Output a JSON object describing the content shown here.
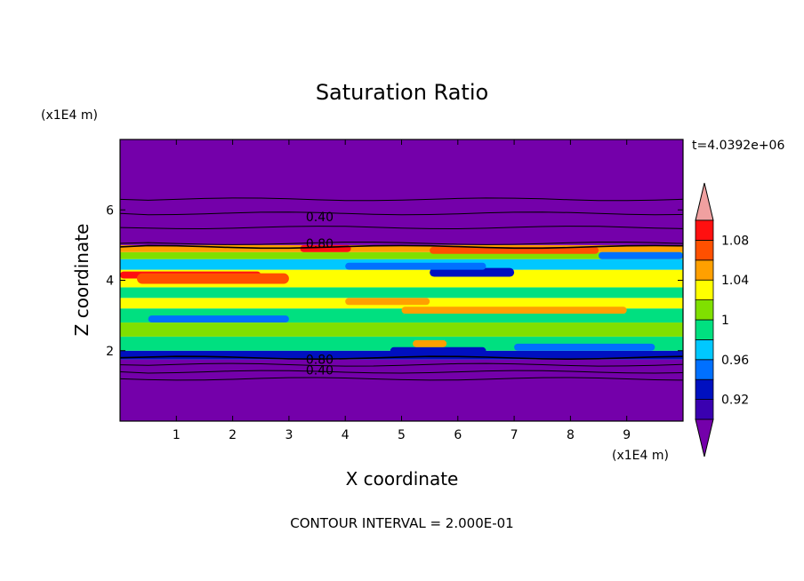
{
  "chart_data": {
    "type": "heatmap",
    "title": "Saturation Ratio",
    "xlabel": "X coordinate",
    "ylabel": "Z coordinate",
    "x_unit": "(x1E4 m)",
    "y_unit": "(x1E4 m)",
    "time_label": "t=4.0392e+06",
    "footer": "CONTOUR INTERVAL = 2.000E-01",
    "xlim": [
      0,
      10
    ],
    "ylim": [
      0,
      8
    ],
    "x_ticks": [
      "1",
      "2",
      "3",
      "4",
      "5",
      "6",
      "7",
      "8",
      "9"
    ],
    "y_ticks": [
      "2",
      "4",
      "6"
    ],
    "grid": false,
    "colorbar": {
      "placement": "right",
      "levels": [
        0.9,
        0.92,
        0.94,
        0.96,
        0.98,
        1.0,
        1.02,
        1.04,
        1.06,
        1.08,
        1.1
      ],
      "tick_labels": [
        "0.92",
        "0.96",
        "1",
        "1.04",
        "1.08"
      ],
      "colors": [
        "#7400aa",
        "#3a00b0",
        "#0010c0",
        "#0070ff",
        "#00c8ff",
        "#00e080",
        "#80e000",
        "#ffff00",
        "#ffa000",
        "#ff5000",
        "#ff1010",
        "#f0a0a0"
      ]
    },
    "contour_labels": [
      "0.40",
      "0.80",
      "0.80",
      "0.40"
    ],
    "bands": [
      {
        "z0": 0.0,
        "z1": 1.75,
        "value": 0.4
      },
      {
        "z0": 1.75,
        "z1": 2.0,
        "value": 0.92
      },
      {
        "z0": 2.0,
        "z1": 2.4,
        "value": 0.985
      },
      {
        "z0": 2.4,
        "z1": 2.8,
        "value": 1.01
      },
      {
        "z0": 2.8,
        "z1": 3.2,
        "value": 0.99
      },
      {
        "z0": 3.2,
        "z1": 3.5,
        "value": 1.03
      },
      {
        "z0": 3.5,
        "z1": 3.8,
        "value": 0.995
      },
      {
        "z0": 3.8,
        "z1": 4.3,
        "value": 1.03
      },
      {
        "z0": 4.3,
        "z1": 4.6,
        "value": 0.97
      },
      {
        "z0": 4.6,
        "z1": 4.8,
        "value": 1.0
      },
      {
        "z0": 4.8,
        "z1": 5.0,
        "value": 1.05
      },
      {
        "z0": 5.0,
        "z1": 8.0,
        "value": 0.4
      }
    ],
    "features": [
      {
        "x0": 0.0,
        "x1": 2.5,
        "z0": 4.05,
        "z1": 4.25,
        "value": 1.09
      },
      {
        "x0": 0.3,
        "x1": 3.0,
        "z0": 3.9,
        "z1": 4.2,
        "value": 1.07
      },
      {
        "x0": 3.2,
        "x1": 4.1,
        "z0": 4.8,
        "z1": 5.0,
        "value": 1.09
      },
      {
        "x0": 5.5,
        "x1": 8.5,
        "z0": 4.75,
        "z1": 4.95,
        "value": 1.07
      },
      {
        "x0": 5.5,
        "x1": 7.0,
        "z0": 4.1,
        "z1": 4.35,
        "value": 0.93
      },
      {
        "x0": 4.0,
        "x1": 6.5,
        "z0": 4.3,
        "z1": 4.5,
        "value": 0.95
      },
      {
        "x0": 5.0,
        "x1": 9.0,
        "z0": 3.05,
        "z1": 3.25,
        "value": 1.05
      },
      {
        "x0": 4.0,
        "x1": 5.5,
        "z0": 3.3,
        "z1": 3.5,
        "value": 1.05
      },
      {
        "x0": 0.5,
        "x1": 3.0,
        "z0": 2.8,
        "z1": 3.0,
        "value": 0.95
      },
      {
        "x0": 4.8,
        "x1": 6.5,
        "z0": 1.9,
        "z1": 2.1,
        "value": 0.92
      },
      {
        "x0": 5.2,
        "x1": 5.8,
        "z0": 2.1,
        "z1": 2.3,
        "value": 1.05
      },
      {
        "x0": 7.0,
        "x1": 9.5,
        "z0": 2.0,
        "z1": 2.2,
        "value": 0.95
      },
      {
        "x0": 8.5,
        "x1": 10.0,
        "z0": 4.6,
        "z1": 4.8,
        "value": 0.95
      }
    ],
    "contour_lines_z": [
      1.2,
      1.4,
      1.6,
      1.8,
      4.95,
      5.05,
      5.5,
      5.9,
      6.3
    ]
  }
}
